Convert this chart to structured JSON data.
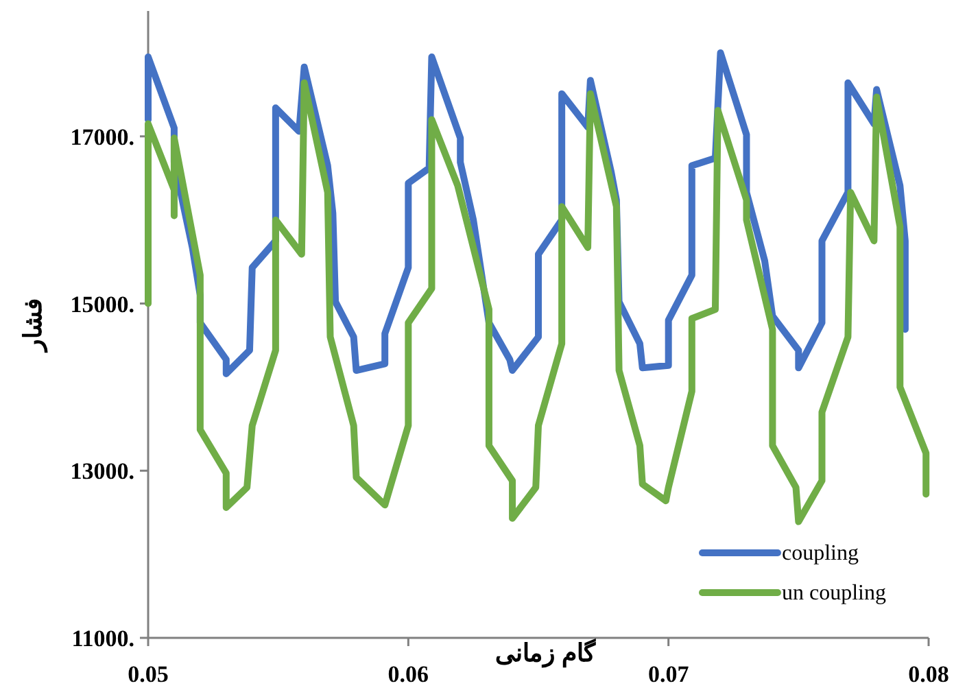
{
  "chart_data": {
    "type": "line",
    "xlabel": "گام زمانی",
    "ylabel": "فشار",
    "xlim": [
      0.05,
      0.08
    ],
    "ylim": [
      11000,
      18500
    ],
    "xticks": [
      0.05,
      0.06,
      0.07,
      0.08
    ],
    "yticks": [
      {
        "value": 11000,
        "label": "11000."
      },
      {
        "value": 13000,
        "label": "13000."
      },
      {
        "value": 15000,
        "label": "15000."
      },
      {
        "value": 17000,
        "label": "17000."
      }
    ],
    "grid": false,
    "legend": "bottom right",
    "line_style": "solid",
    "series": [
      {
        "name": "coupling",
        "color": "#4472c4",
        "x": [
          0.05,
          0.05,
          0.051,
          0.051,
          0.0517,
          0.052,
          0.052,
          0.053,
          0.053,
          0.0539,
          0.054,
          0.0549,
          0.0549,
          0.0558,
          0.056,
          0.0569,
          0.0571,
          0.0572,
          0.0579,
          0.058,
          0.0591,
          0.0591,
          0.06,
          0.06,
          0.0608,
          0.0609,
          0.062,
          0.062,
          0.0625,
          0.0631,
          0.0639,
          0.064,
          0.065,
          0.065,
          0.0659,
          0.0659,
          0.0669,
          0.067,
          0.0678,
          0.068,
          0.0681,
          0.0689,
          0.069,
          0.07,
          0.07,
          0.0709,
          0.0709,
          0.0718,
          0.072,
          0.073,
          0.073,
          0.0737,
          0.074,
          0.075,
          0.075,
          0.0759,
          0.0759,
          0.0769,
          0.0769,
          0.0779,
          0.078,
          0.0789,
          0.0791,
          0.0791
        ],
        "values": [
          17200,
          17950,
          17100,
          16690,
          15670,
          15100,
          14770,
          14330,
          14160,
          14440,
          15430,
          15750,
          17340,
          17060,
          17830,
          16650,
          16080,
          15020,
          14600,
          14200,
          14280,
          14640,
          15430,
          16440,
          16620,
          17950,
          16980,
          16690,
          16000,
          14770,
          14330,
          14200,
          14600,
          15590,
          16000,
          17510,
          17110,
          17670,
          16570,
          16240,
          15020,
          14520,
          14230,
          14260,
          14800,
          15340,
          16650,
          16740,
          18000,
          17020,
          16330,
          15510,
          14850,
          14440,
          14230,
          14770,
          15750,
          16330,
          17640,
          17150,
          17560,
          16410,
          15750,
          14690
        ]
      },
      {
        "name": "un coupling",
        "color": "#70ad47",
        "x": [
          0.05,
          0.05,
          0.051,
          0.051,
          0.051,
          0.052,
          0.052,
          0.053,
          0.053,
          0.0538,
          0.054,
          0.0549,
          0.0549,
          0.0559,
          0.056,
          0.0569,
          0.057,
          0.0579,
          0.058,
          0.0591,
          0.06,
          0.06,
          0.0609,
          0.0609,
          0.0619,
          0.0631,
          0.0631,
          0.064,
          0.064,
          0.0649,
          0.065,
          0.0659,
          0.0659,
          0.0669,
          0.067,
          0.068,
          0.0681,
          0.0689,
          0.069,
          0.0699,
          0.07,
          0.0709,
          0.0709,
          0.0718,
          0.0719,
          0.073,
          0.073,
          0.074,
          0.074,
          0.0749,
          0.075,
          0.0759,
          0.0759,
          0.0769,
          0.077,
          0.0779,
          0.078,
          0.0789,
          0.0789,
          0.0799,
          0.0799
        ],
        "values": [
          15000,
          17150,
          16360,
          16050,
          16980,
          15340,
          13490,
          12970,
          12560,
          12800,
          13540,
          14440,
          16000,
          15590,
          17640,
          16330,
          14600,
          13540,
          12920,
          12590,
          13540,
          14770,
          15180,
          17200,
          16410,
          14930,
          13300,
          12880,
          12430,
          12800,
          13540,
          14520,
          16160,
          15670,
          17510,
          16160,
          14200,
          13300,
          12840,
          12640,
          12800,
          13950,
          14820,
          14930,
          17310,
          16240,
          16000,
          14690,
          13300,
          12800,
          12390,
          12880,
          13700,
          14600,
          16330,
          15750,
          17470,
          15920,
          14000,
          13210,
          12720
        ]
      }
    ]
  }
}
